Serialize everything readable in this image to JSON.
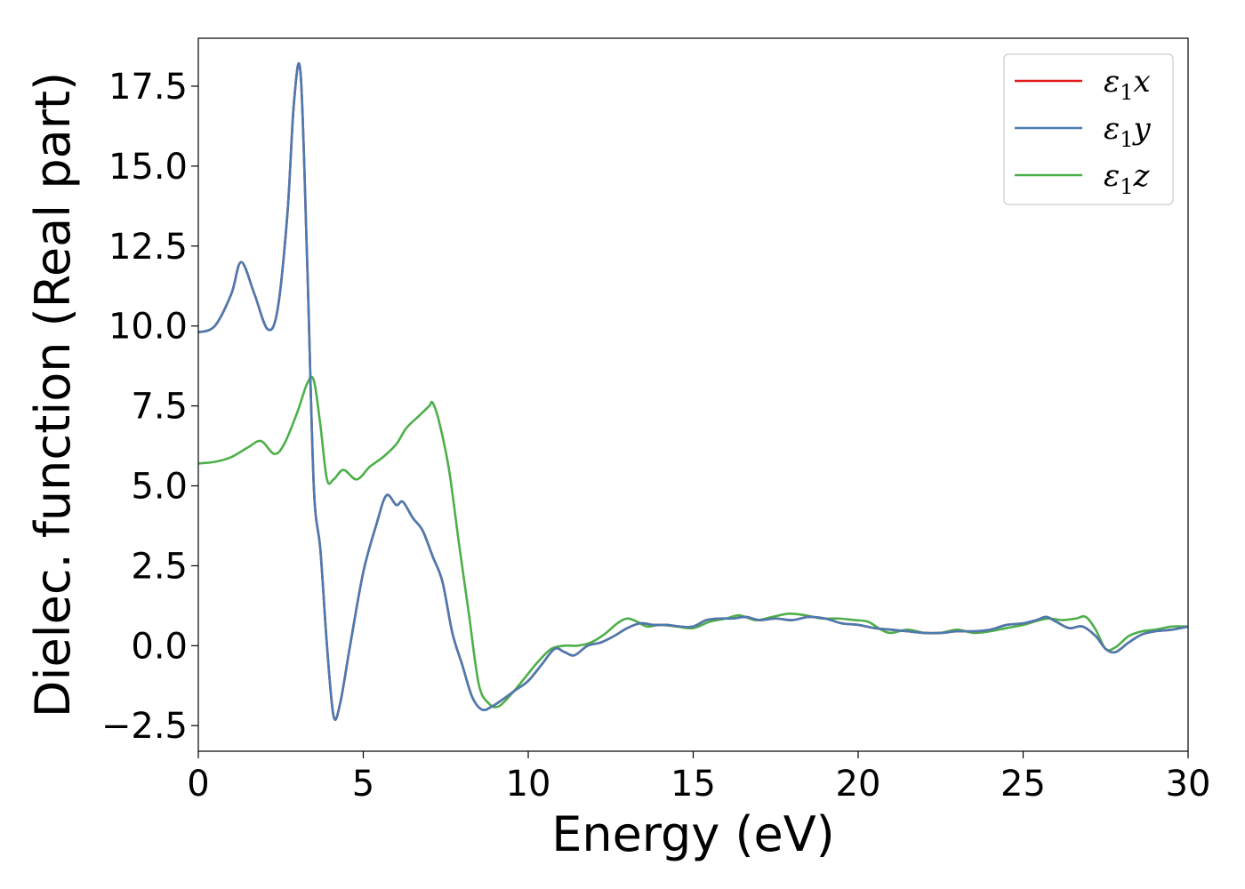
{
  "chart_data": {
    "type": "line",
    "title": "",
    "xlabel": "Energy (eV)",
    "ylabel": "Dielec. function (Real part)",
    "xlim": [
      0,
      30
    ],
    "ylim": [
      -3.3,
      19.0
    ],
    "xticks": [
      0,
      5,
      10,
      15,
      20,
      25,
      30
    ],
    "xtick_labels": [
      "0",
      "5",
      "10",
      "15",
      "20",
      "25",
      "30"
    ],
    "yticks": [
      -2.5,
      0.0,
      2.5,
      5.0,
      7.5,
      10.0,
      12.5,
      15.0,
      17.5
    ],
    "ytick_labels": [
      "−2.5",
      "0.0",
      "2.5",
      "5.0",
      "7.5",
      "10.0",
      "12.5",
      "15.0",
      "17.5"
    ],
    "grid": false,
    "legend_position": "top-right",
    "series": [
      {
        "name": "ε1x",
        "legend_main": "ε",
        "legend_sub": "1",
        "legend_var": "x",
        "color": "#e41a1c",
        "x": [
          0,
          0.5,
          1.0,
          1.3,
          1.7,
          2.1,
          2.4,
          2.7,
          2.9,
          3.1,
          3.3,
          3.5,
          3.7,
          3.9,
          4.1,
          4.3,
          4.6,
          5.0,
          5.4,
          5.7,
          6.0,
          6.2,
          6.5,
          6.8,
          7.1,
          7.4,
          7.7,
          8.0,
          8.3,
          8.6,
          8.9,
          9.2,
          9.6,
          10.0,
          10.4,
          10.8,
          11.1,
          11.4,
          11.8,
          12.2,
          12.6,
          13.0,
          13.4,
          13.8,
          14.2,
          14.6,
          15.0,
          15.4,
          15.8,
          16.2,
          16.6,
          17.0,
          17.5,
          18.0,
          18.5,
          19.0,
          19.5,
          20.0,
          20.5,
          21.0,
          21.5,
          22.0,
          22.5,
          23.0,
          23.5,
          24.0,
          24.5,
          25.0,
          25.4,
          25.7,
          26.0,
          26.4,
          26.8,
          27.2,
          27.5,
          27.8,
          28.2,
          28.6,
          29.0,
          29.5,
          30.0
        ],
        "y": [
          9.8,
          10.0,
          11.0,
          12.0,
          11.0,
          9.9,
          10.5,
          13.5,
          17.0,
          17.9,
          12.0,
          5.0,
          3.0,
          0.0,
          -2.2,
          -1.8,
          0.0,
          2.3,
          3.8,
          4.7,
          4.4,
          4.5,
          4.0,
          3.6,
          2.8,
          2.0,
          0.4,
          -0.6,
          -1.6,
          -2.0,
          -1.9,
          -1.7,
          -1.4,
          -1.1,
          -0.6,
          -0.1,
          -0.2,
          -0.3,
          0.0,
          0.1,
          0.3,
          0.55,
          0.7,
          0.65,
          0.65,
          0.6,
          0.6,
          0.8,
          0.85,
          0.85,
          0.9,
          0.8,
          0.85,
          0.8,
          0.9,
          0.85,
          0.7,
          0.65,
          0.55,
          0.5,
          0.45,
          0.4,
          0.4,
          0.45,
          0.45,
          0.5,
          0.65,
          0.7,
          0.8,
          0.9,
          0.75,
          0.55,
          0.6,
          0.3,
          -0.1,
          -0.2,
          0.1,
          0.35,
          0.45,
          0.5,
          0.6
        ]
      },
      {
        "name": "ε1y",
        "legend_main": "ε",
        "legend_sub": "1",
        "legend_var": "y",
        "color": "#4a7bb0",
        "x": [
          0,
          0.5,
          1.0,
          1.3,
          1.7,
          2.1,
          2.4,
          2.7,
          2.9,
          3.1,
          3.3,
          3.5,
          3.7,
          3.9,
          4.1,
          4.3,
          4.6,
          5.0,
          5.4,
          5.7,
          6.0,
          6.2,
          6.5,
          6.8,
          7.1,
          7.4,
          7.7,
          8.0,
          8.3,
          8.6,
          8.9,
          9.2,
          9.6,
          10.0,
          10.4,
          10.8,
          11.1,
          11.4,
          11.8,
          12.2,
          12.6,
          13.0,
          13.4,
          13.8,
          14.2,
          14.6,
          15.0,
          15.4,
          15.8,
          16.2,
          16.6,
          17.0,
          17.5,
          18.0,
          18.5,
          19.0,
          19.5,
          20.0,
          20.5,
          21.0,
          21.5,
          22.0,
          22.5,
          23.0,
          23.5,
          24.0,
          24.5,
          25.0,
          25.4,
          25.7,
          26.0,
          26.4,
          26.8,
          27.2,
          27.5,
          27.8,
          28.2,
          28.6,
          29.0,
          29.5,
          30.0
        ],
        "y": [
          9.8,
          10.0,
          11.0,
          12.0,
          11.0,
          9.9,
          10.5,
          13.5,
          17.0,
          17.9,
          12.0,
          5.0,
          3.0,
          0.0,
          -2.2,
          -1.8,
          0.0,
          2.3,
          3.8,
          4.7,
          4.4,
          4.5,
          4.0,
          3.6,
          2.8,
          2.0,
          0.4,
          -0.6,
          -1.6,
          -2.0,
          -1.9,
          -1.7,
          -1.4,
          -1.1,
          -0.6,
          -0.1,
          -0.2,
          -0.3,
          0.0,
          0.1,
          0.3,
          0.55,
          0.7,
          0.65,
          0.65,
          0.6,
          0.6,
          0.8,
          0.85,
          0.85,
          0.9,
          0.8,
          0.85,
          0.8,
          0.9,
          0.85,
          0.7,
          0.65,
          0.55,
          0.5,
          0.45,
          0.4,
          0.4,
          0.45,
          0.45,
          0.5,
          0.65,
          0.7,
          0.8,
          0.9,
          0.75,
          0.55,
          0.6,
          0.3,
          -0.1,
          -0.2,
          0.1,
          0.35,
          0.45,
          0.5,
          0.6
        ]
      },
      {
        "name": "ε1z",
        "legend_main": "ε",
        "legend_sub": "1",
        "legend_var": "z",
        "color": "#4daf4a",
        "x": [
          0,
          0.5,
          1.0,
          1.5,
          1.9,
          2.3,
          2.6,
          3.0,
          3.3,
          3.5,
          3.7,
          3.9,
          4.1,
          4.4,
          4.8,
          5.2,
          5.6,
          6.0,
          6.3,
          6.7,
          7.0,
          7.1,
          7.3,
          7.6,
          7.9,
          8.2,
          8.5,
          8.8,
          9.1,
          9.5,
          9.9,
          10.3,
          10.7,
          11.1,
          11.5,
          11.9,
          12.3,
          12.7,
          13.0,
          13.3,
          13.6,
          14.0,
          14.5,
          15.0,
          15.5,
          16.0,
          16.4,
          16.9,
          17.4,
          17.9,
          18.4,
          18.9,
          19.4,
          19.9,
          20.3,
          20.7,
          21.0,
          21.5,
          22.0,
          22.5,
          23.0,
          23.5,
          24.0,
          24.5,
          25.0,
          25.5,
          25.8,
          26.2,
          26.6,
          26.9,
          27.2,
          27.5,
          27.8,
          28.2,
          28.6,
          29.0,
          29.5,
          30.0
        ],
        "y": [
          5.7,
          5.75,
          5.9,
          6.2,
          6.4,
          6.0,
          6.3,
          7.3,
          8.2,
          8.3,
          6.9,
          5.2,
          5.2,
          5.5,
          5.2,
          5.6,
          5.9,
          6.3,
          6.8,
          7.2,
          7.5,
          7.6,
          7.0,
          5.5,
          3.2,
          1.0,
          -1.2,
          -1.8,
          -1.9,
          -1.5,
          -1.0,
          -0.5,
          -0.1,
          0.0,
          0.0,
          0.1,
          0.35,
          0.7,
          0.85,
          0.75,
          0.6,
          0.65,
          0.6,
          0.55,
          0.75,
          0.85,
          0.95,
          0.8,
          0.9,
          1.0,
          0.95,
          0.85,
          0.85,
          0.8,
          0.75,
          0.5,
          0.4,
          0.5,
          0.4,
          0.4,
          0.5,
          0.4,
          0.45,
          0.55,
          0.65,
          0.8,
          0.85,
          0.8,
          0.85,
          0.9,
          0.5,
          -0.1,
          -0.05,
          0.3,
          0.45,
          0.5,
          0.6,
          0.6
        ]
      }
    ]
  }
}
